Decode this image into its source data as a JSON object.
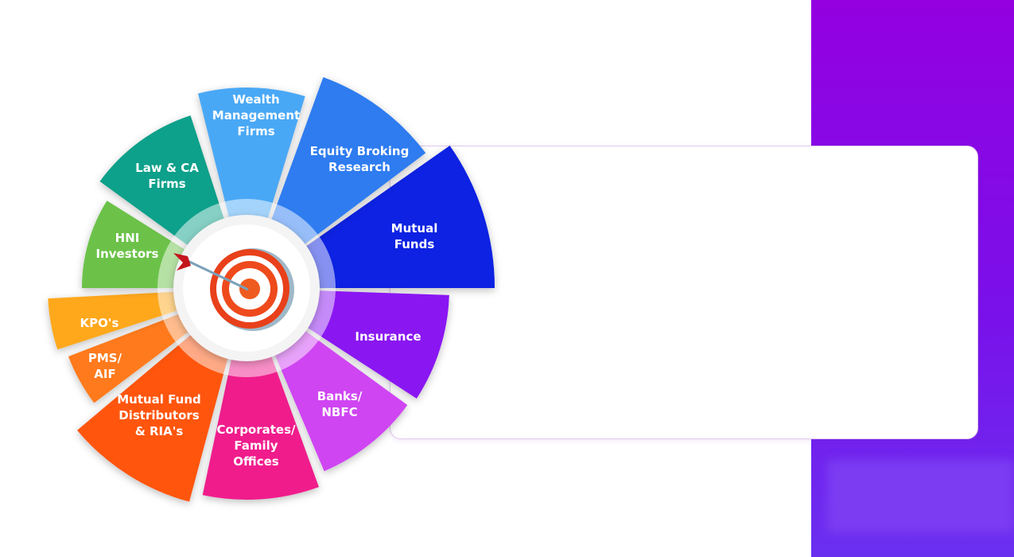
{
  "center_icon": "target-with-arrow-icon",
  "segments": [
    {
      "id": "mutual-funds",
      "lines": [
        "Mutual",
        "Funds"
      ],
      "color": "#0a22e2"
    },
    {
      "id": "insurance",
      "lines": [
        "Insurance"
      ],
      "color": "#8a12f2"
    },
    {
      "id": "banks-nbfc",
      "lines": [
        "Banks/",
        "NBFC"
      ],
      "color": "#cf45f2"
    },
    {
      "id": "corporates-family-offices",
      "lines": [
        "Corporates/",
        "Family",
        "Offices"
      ],
      "color": "#f01f8c"
    },
    {
      "id": "mutual-fund-distributors",
      "lines": [
        "Mutual Fund",
        "Distributors",
        "& RIA's"
      ],
      "color": "#ff5410"
    },
    {
      "id": "pms-aif",
      "lines": [
        "PMS/",
        "AIF"
      ],
      "color": "#ff7a1e"
    },
    {
      "id": "kpos",
      "lines": [
        "KPO's"
      ],
      "color": "#ffa81e"
    },
    {
      "id": "hni-investors",
      "lines": [
        "HNI",
        "Investors"
      ],
      "color": "#6cc24a"
    },
    {
      "id": "law-ca-firms",
      "lines": [
        "Law & CA",
        "Firms"
      ],
      "color": "#10a08a"
    },
    {
      "id": "wealth-management-firms",
      "lines": [
        "Wealth",
        "Management",
        "Firms"
      ],
      "color": "#4aa8f6"
    },
    {
      "id": "equity-broking-research",
      "lines": [
        "Equity Broking",
        "Research"
      ],
      "color": "#2f7cf0"
    }
  ],
  "colors": {
    "band": "#8a00e6",
    "panel_border": "#e2c8ee",
    "target_red": "#e8401a"
  }
}
